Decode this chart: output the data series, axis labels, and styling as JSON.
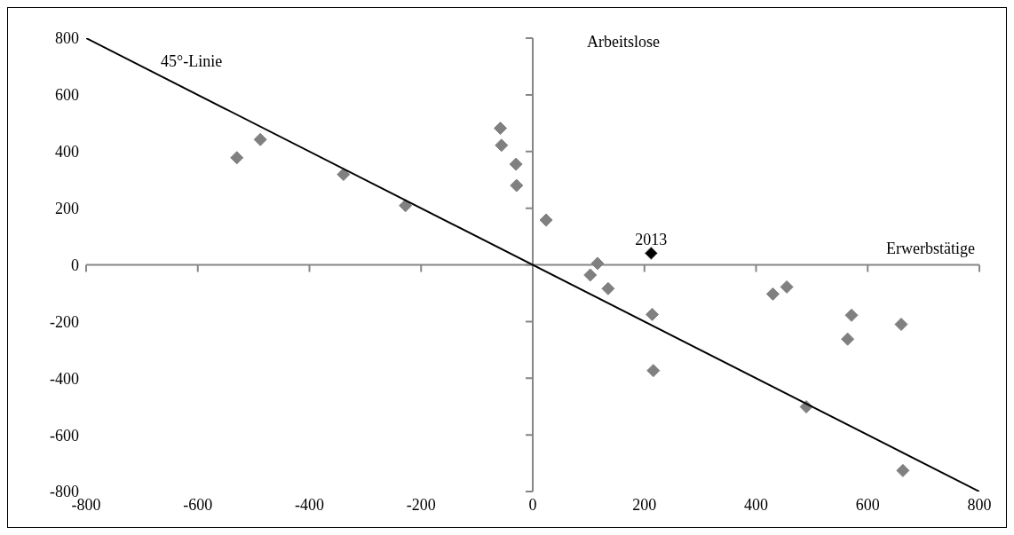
{
  "chart_data": {
    "type": "scatter",
    "xlabel": "Erwerbstätige",
    "ylabel": "Arbeitslose",
    "series": [
      {
        "marker": "diamond",
        "x": [
          -530,
          -488,
          -339,
          -228,
          -58,
          -56,
          -30,
          -29,
          24,
          116,
          103,
          135,
          212,
          214,
          216,
          430,
          455,
          490,
          564,
          571,
          660,
          663
        ],
        "values": [
          378,
          442,
          319,
          209,
          482,
          422,
          355,
          280,
          158,
          5,
          -36,
          -84,
          41,
          -175,
          -373,
          -103,
          -78,
          -501,
          -262,
          -178,
          -210,
          -726
        ],
        "colors": [
          "#808080",
          "#808080",
          "#808080",
          "#808080",
          "#808080",
          "#808080",
          "#808080",
          "#808080",
          "#808080",
          "#808080",
          "#808080",
          "#808080",
          "#000000",
          "#808080",
          "#808080",
          "#808080",
          "#808080",
          "#808080",
          "#808080",
          "#808080",
          "#808080",
          "#808080"
        ]
      },
      {
        "type": "line",
        "marker": "none",
        "x": [
          -800,
          800
        ],
        "values": [
          800,
          -800
        ],
        "color": "#000000"
      }
    ],
    "xlim": [
      -800,
      800
    ],
    "ylim": [
      -800,
      800
    ],
    "xticks": [
      -800,
      -600,
      -400,
      -200,
      0,
      200,
      400,
      600,
      800
    ],
    "yticks": [
      -800,
      -600,
      -400,
      -200,
      0,
      200,
      400,
      600,
      800
    ],
    "ref_lines": [
      {
        "axis": "x",
        "value": 0,
        "color": "#868686"
      },
      {
        "axis": "y",
        "value": 0,
        "color": "#868686"
      }
    ],
    "annotations": [
      "45°-Linie",
      {
        "text": "2013",
        "x": 212,
        "y": 41
      }
    ],
    "grid": false,
    "legend": false
  }
}
